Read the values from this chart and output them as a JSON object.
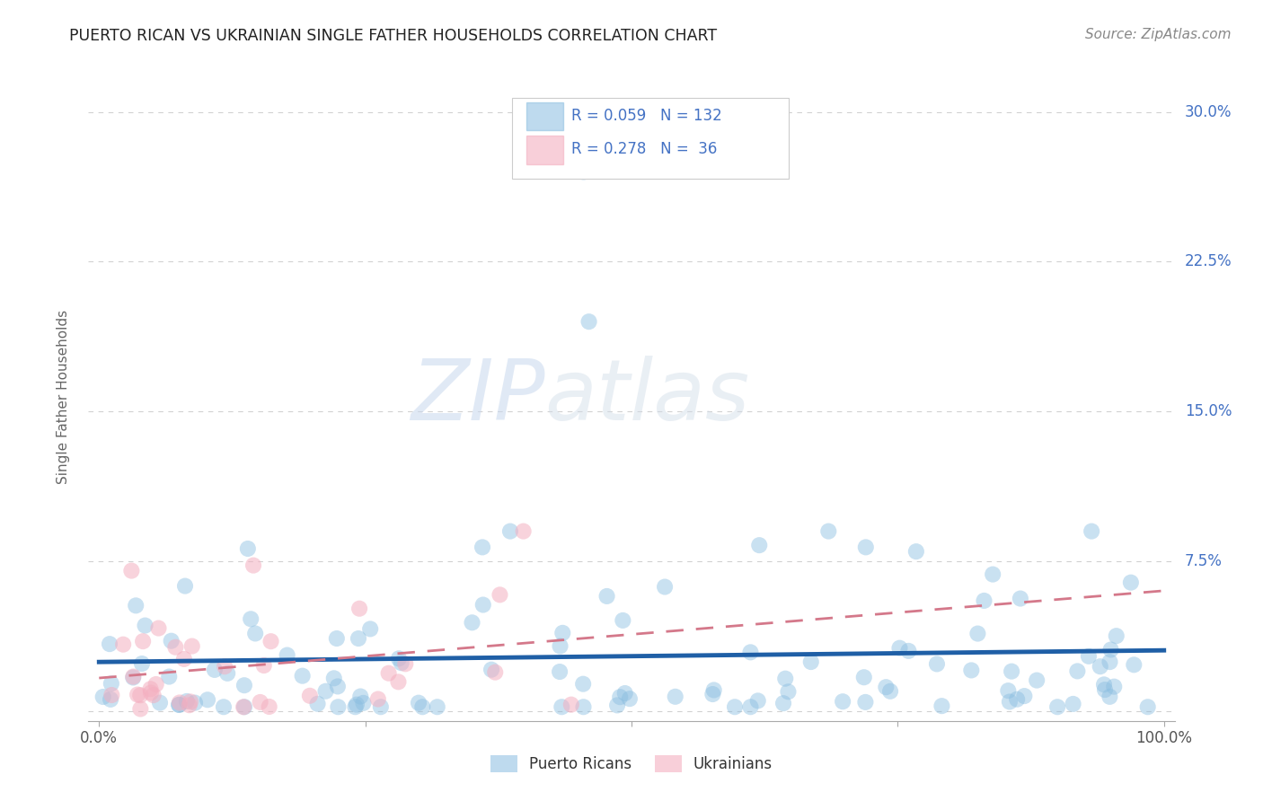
{
  "title": "PUERTO RICAN VS UKRAINIAN SINGLE FATHER HOUSEHOLDS CORRELATION CHART",
  "source": "Source: ZipAtlas.com",
  "ylabel": "Single Father Households",
  "xlim": [
    -0.01,
    1.01
  ],
  "ylim": [
    -0.005,
    0.32
  ],
  "ytick_positions": [
    0.0,
    0.075,
    0.15,
    0.225,
    0.3
  ],
  "yticklabels": [
    "",
    "7.5%",
    "15.0%",
    "22.5%",
    "30.0%"
  ],
  "grid_color": "#cccccc",
  "blue_color": "#89bde0",
  "pink_color": "#f4afc0",
  "blue_line_color": "#1f5fa6",
  "pink_line_color": "#d4788a",
  "legend_r_blue": "0.059",
  "legend_n_blue": "132",
  "legend_r_pink": "0.278",
  "legend_n_pink": "36",
  "text_color": "#4472c4",
  "title_color": "#222222",
  "ylabel_color": "#666666"
}
